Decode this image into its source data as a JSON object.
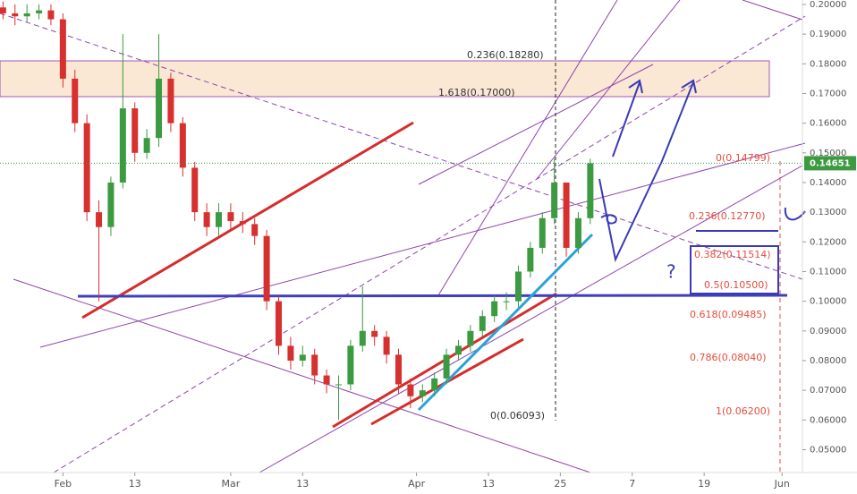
{
  "chart_data": {
    "type": "candlestick",
    "x": [
      22,
      24,
      26,
      28,
      30,
      32,
      34,
      36,
      38,
      40,
      42,
      44,
      46,
      48,
      50,
      52,
      54,
      56,
      58,
      60,
      62,
      64,
      66,
      68,
      70,
      72,
      74,
      76,
      78,
      80,
      82,
      84,
      86,
      88,
      90,
      92,
      94,
      96,
      98,
      100,
      102,
      104,
      106,
      108,
      110,
      112,
      114,
      116,
      118,
      120
    ],
    "open": [
      0.199,
      0.197,
      0.196,
      0.197,
      0.198,
      0.195,
      0.175,
      0.16,
      0.13,
      0.125,
      0.14,
      0.165,
      0.15,
      0.155,
      0.175,
      0.16,
      0.145,
      0.13,
      0.125,
      0.13,
      0.127,
      0.126,
      0.122,
      0.1,
      0.085,
      0.08,
      0.082,
      0.075,
      0.072,
      0.072,
      0.085,
      0.09,
      0.088,
      0.082,
      0.072,
      0.068,
      0.07,
      0.074,
      0.082,
      0.085,
      0.09,
      0.095,
      0.1,
      0.1,
      0.11,
      0.118,
      0.128,
      0.14,
      0.118,
      0.128
    ],
    "high": [
      0.201,
      0.2,
      0.2,
      0.2,
      0.2,
      0.197,
      0.178,
      0.163,
      0.134,
      0.142,
      0.19,
      0.167,
      0.158,
      0.19,
      0.177,
      0.162,
      0.147,
      0.133,
      0.133,
      0.133,
      0.13,
      0.128,
      0.124,
      0.102,
      0.088,
      0.085,
      0.084,
      0.077,
      0.075,
      0.087,
      0.105,
      0.092,
      0.09,
      0.084,
      0.074,
      0.072,
      0.076,
      0.084,
      0.087,
      0.092,
      0.097,
      0.102,
      0.103,
      0.112,
      0.12,
      0.13,
      0.148,
      0.14,
      0.13,
      0.148
    ],
    "low": [
      0.195,
      0.193,
      0.194,
      0.195,
      0.193,
      0.172,
      0.157,
      0.127,
      0.1,
      0.122,
      0.138,
      0.147,
      0.148,
      0.152,
      0.157,
      0.142,
      0.127,
      0.122,
      0.122,
      0.124,
      0.123,
      0.119,
      0.097,
      0.082,
      0.077,
      0.078,
      0.072,
      0.069,
      0.06,
      0.07,
      0.083,
      0.085,
      0.079,
      0.069,
      0.064,
      0.066,
      0.068,
      0.072,
      0.08,
      0.083,
      0.088,
      0.093,
      0.097,
      0.098,
      0.108,
      0.116,
      0.126,
      0.115,
      0.116,
      0.126
    ],
    "close": [
      0.197,
      0.196,
      0.197,
      0.198,
      0.195,
      0.175,
      0.16,
      0.13,
      0.125,
      0.14,
      0.165,
      0.15,
      0.155,
      0.175,
      0.16,
      0.145,
      0.13,
      0.125,
      0.13,
      0.127,
      0.126,
      0.122,
      0.1,
      0.085,
      0.08,
      0.082,
      0.075,
      0.072,
      0.072,
      0.085,
      0.09,
      0.088,
      0.082,
      0.072,
      0.068,
      0.07,
      0.074,
      0.082,
      0.085,
      0.09,
      0.095,
      0.1,
      0.1,
      0.11,
      0.118,
      0.128,
      0.14,
      0.118,
      0.128,
      0.1465
    ],
    "up_color": "#3c9a40",
    "down_color": "#d6302f",
    "xlim": [
      21.5,
      155.4
    ],
    "xticks": [
      {
        "value": 32,
        "label": "Feb"
      },
      {
        "value": 44,
        "label": "13"
      },
      {
        "value": 60,
        "label": "Mar"
      },
      {
        "value": 72,
        "label": "13"
      },
      {
        "value": 91,
        "label": "Apr"
      },
      {
        "value": 103,
        "label": "13"
      },
      {
        "value": 115,
        "label": "25"
      },
      {
        "value": 127,
        "label": "7"
      },
      {
        "value": 139,
        "label": "19"
      },
      {
        "value": 152,
        "label": "Jun"
      }
    ],
    "ylim": [
      0.0423,
      0.2015
    ],
    "yticks": [
      {
        "value": 0.05,
        "label": "0.05000"
      },
      {
        "value": 0.06,
        "label": "0.06000"
      },
      {
        "value": 0.07,
        "label": "0.07000"
      },
      {
        "value": 0.08,
        "label": "0.08000"
      },
      {
        "value": 0.09,
        "label": "0.09000"
      },
      {
        "value": 0.1,
        "label": "0.10000"
      },
      {
        "value": 0.11,
        "label": "0.11000"
      },
      {
        "value": 0.12,
        "label": "0.12000"
      },
      {
        "value": 0.13,
        "label": "0.13000"
      },
      {
        "value": 0.14,
        "label": "0.14000"
      },
      {
        "value": 0.15,
        "label": "0.15000"
      },
      {
        "value": 0.16,
        "label": "0.16000"
      },
      {
        "value": 0.17,
        "label": "0.17000"
      },
      {
        "value": 0.18,
        "label": "0.18000"
      },
      {
        "value": 0.19,
        "label": "0.19000"
      },
      {
        "value": 0.2,
        "label": "0.20000"
      }
    ],
    "last_price": 0.14651,
    "annotations": [
      "0.236(0.18280)",
      "1.618(0.17000)",
      "0(0.06093)",
      "0(0.14799)",
      "0.236(0.12770)",
      "0.382(0.11514)",
      "0.5(0.10500)",
      "0.618(0.09485)",
      "0.786(0.08040)",
      "1(0.06200)",
      "?"
    ]
  }
}
